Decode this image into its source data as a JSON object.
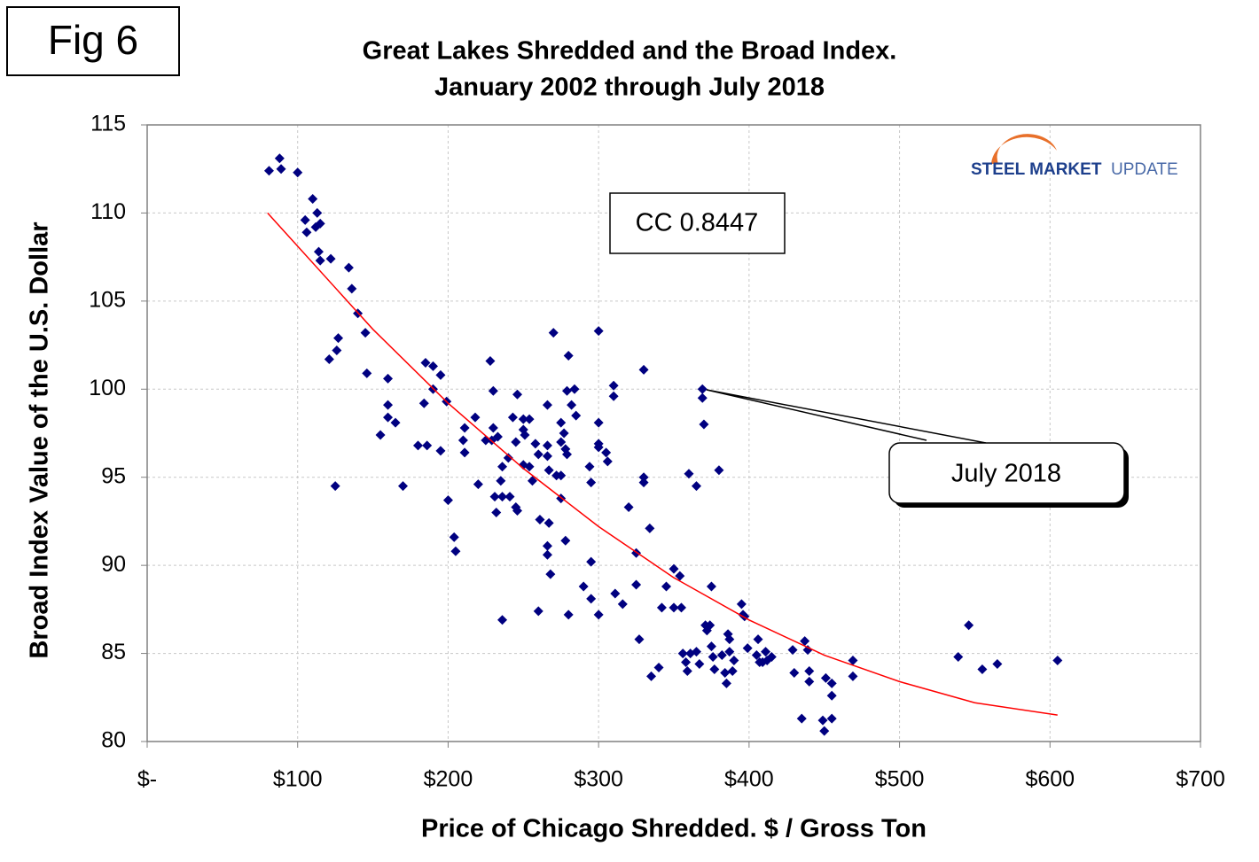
{
  "chart_data": {
    "type": "scatter",
    "figure_label": "Fig 6",
    "title": "Great Lakes Shredded and the Broad Index.",
    "subtitle": "January 2002 through July 2018",
    "x_label": "Price of Chicago Shredded. $ / Gross Ton",
    "y_label": "Broad Index Value of the U.S. Dollar",
    "annotations": [
      "CC 0.8447",
      "July 2018"
    ],
    "logo": [
      "STEEL MARKET",
      "UPDATE"
    ],
    "color": "#000080",
    "grid": true,
    "xlim": [
      0,
      700
    ],
    "ylim": [
      80,
      115
    ],
    "xticks": [
      {
        "value": 0,
        "label": "$-"
      },
      {
        "value": 100,
        "label": "$100"
      },
      {
        "value": 200,
        "label": "$200"
      },
      {
        "value": 300,
        "label": "$300"
      },
      {
        "value": 400,
        "label": "$400"
      },
      {
        "value": 500,
        "label": "$500"
      },
      {
        "value": 600,
        "label": "$600"
      },
      {
        "value": 700,
        "label": "$700"
      }
    ],
    "yticks": [
      80,
      85,
      90,
      95,
      100,
      105,
      110,
      115
    ],
    "x": [
      81,
      88,
      89,
      100,
      110,
      105,
      106,
      113,
      115,
      112,
      114,
      115,
      122,
      134,
      136,
      140,
      145,
      127,
      126,
      121,
      146,
      160,
      125,
      160,
      160,
      165,
      155,
      170,
      185,
      190,
      195,
      190,
      184,
      199,
      180,
      186,
      195,
      200,
      204,
      205,
      210,
      211,
      211,
      218,
      220,
      225,
      228,
      230,
      230,
      229,
      233,
      231,
      232,
      235,
      236,
      236,
      236,
      240,
      241,
      243,
      245,
      246,
      246,
      245,
      250,
      250,
      251,
      250,
      254,
      254,
      256,
      258,
      260,
      261,
      260,
      266,
      266,
      266,
      267,
      267,
      266,
      266,
      268,
      270,
      272,
      275,
      275,
      275,
      275,
      277,
      278,
      279,
      279,
      278,
      280,
      280,
      282,
      284,
      285,
      290,
      294,
      295,
      295,
      295,
      300,
      300,
      300,
      300,
      300,
      305,
      306,
      310,
      310,
      311,
      316,
      320,
      325,
      325,
      327,
      330,
      330,
      330,
      334,
      335,
      340,
      342,
      345,
      350,
      350,
      354,
      355,
      356,
      358,
      360,
      359,
      361,
      365,
      365,
      367,
      369,
      369,
      370,
      371,
      372,
      374,
      375,
      375,
      376,
      377,
      380,
      384,
      382,
      385,
      386,
      387,
      387,
      389,
      390,
      395,
      396,
      397,
      399,
      405,
      406,
      407,
      409,
      411,
      412,
      415,
      429,
      430,
      435,
      437,
      439,
      440,
      440,
      449,
      450,
      451,
      455,
      455,
      455,
      469,
      469,
      539,
      546,
      555,
      565,
      605
    ],
    "values": [
      112.4,
      113.1,
      112.5,
      112.3,
      110.8,
      109.6,
      108.9,
      110.0,
      109.4,
      109.2,
      107.8,
      107.3,
      107.4,
      106.9,
      105.7,
      104.3,
      103.2,
      102.9,
      102.2,
      101.7,
      100.9,
      100.6,
      94.5,
      99.1,
      98.4,
      98.1,
      97.4,
      94.5,
      101.5,
      101.3,
      100.8,
      100.0,
      99.2,
      99.3,
      96.8,
      96.8,
      96.5,
      93.7,
      91.6,
      90.8,
      97.1,
      97.8,
      96.4,
      98.4,
      94.6,
      97.1,
      101.6,
      99.9,
      97.8,
      97.1,
      97.3,
      93.9,
      93.0,
      94.8,
      95.6,
      93.9,
      86.9,
      96.1,
      93.9,
      98.4,
      97.0,
      99.7,
      93.1,
      93.3,
      98.3,
      97.7,
      97.4,
      95.7,
      98.3,
      95.6,
      94.8,
      96.9,
      96.3,
      92.6,
      87.4,
      99.1,
      96.8,
      96.2,
      95.4,
      92.4,
      91.1,
      90.6,
      89.5,
      103.2,
      95.1,
      98.1,
      97.0,
      95.1,
      93.8,
      97.5,
      96.6,
      96.3,
      99.9,
      91.4,
      101.9,
      87.2,
      99.1,
      100.0,
      98.5,
      88.8,
      95.6,
      94.7,
      90.2,
      88.1,
      103.3,
      98.1,
      96.9,
      96.7,
      87.2,
      96.4,
      95.9,
      100.2,
      99.6,
      88.4,
      87.8,
      93.3,
      90.7,
      88.9,
      85.8,
      101.1,
      95.0,
      94.7,
      92.1,
      83.7,
      84.2,
      87.6,
      88.8,
      89.8,
      87.6,
      89.4,
      87.6,
      85.0,
      84.5,
      95.2,
      84.0,
      85.0,
      94.5,
      85.1,
      84.4,
      100.0,
      99.5,
      98.0,
      86.6,
      86.3,
      86.6,
      88.8,
      85.4,
      84.8,
      84.1,
      95.4,
      83.9,
      84.9,
      83.3,
      86.1,
      85.8,
      85.1,
      84.0,
      84.6,
      87.8,
      87.2,
      87.1,
      85.3,
      84.9,
      85.8,
      84.5,
      84.5,
      85.1,
      84.6,
      84.8,
      85.2,
      83.9,
      81.3,
      85.7,
      85.2,
      84.0,
      83.4,
      81.2,
      80.6,
      83.6,
      81.3,
      83.3,
      82.6,
      84.6,
      83.7,
      84.8,
      86.6,
      84.1,
      84.4,
      84.6
    ],
    "trendline": {
      "color": "#ff0000",
      "x": [
        80,
        150,
        200,
        250,
        300,
        350,
        400,
        450,
        500,
        550,
        605
      ],
      "values": [
        110.0,
        103.4,
        99.2,
        95.5,
        92.2,
        89.3,
        86.9,
        84.9,
        83.4,
        82.2,
        81.5
      ]
    }
  }
}
